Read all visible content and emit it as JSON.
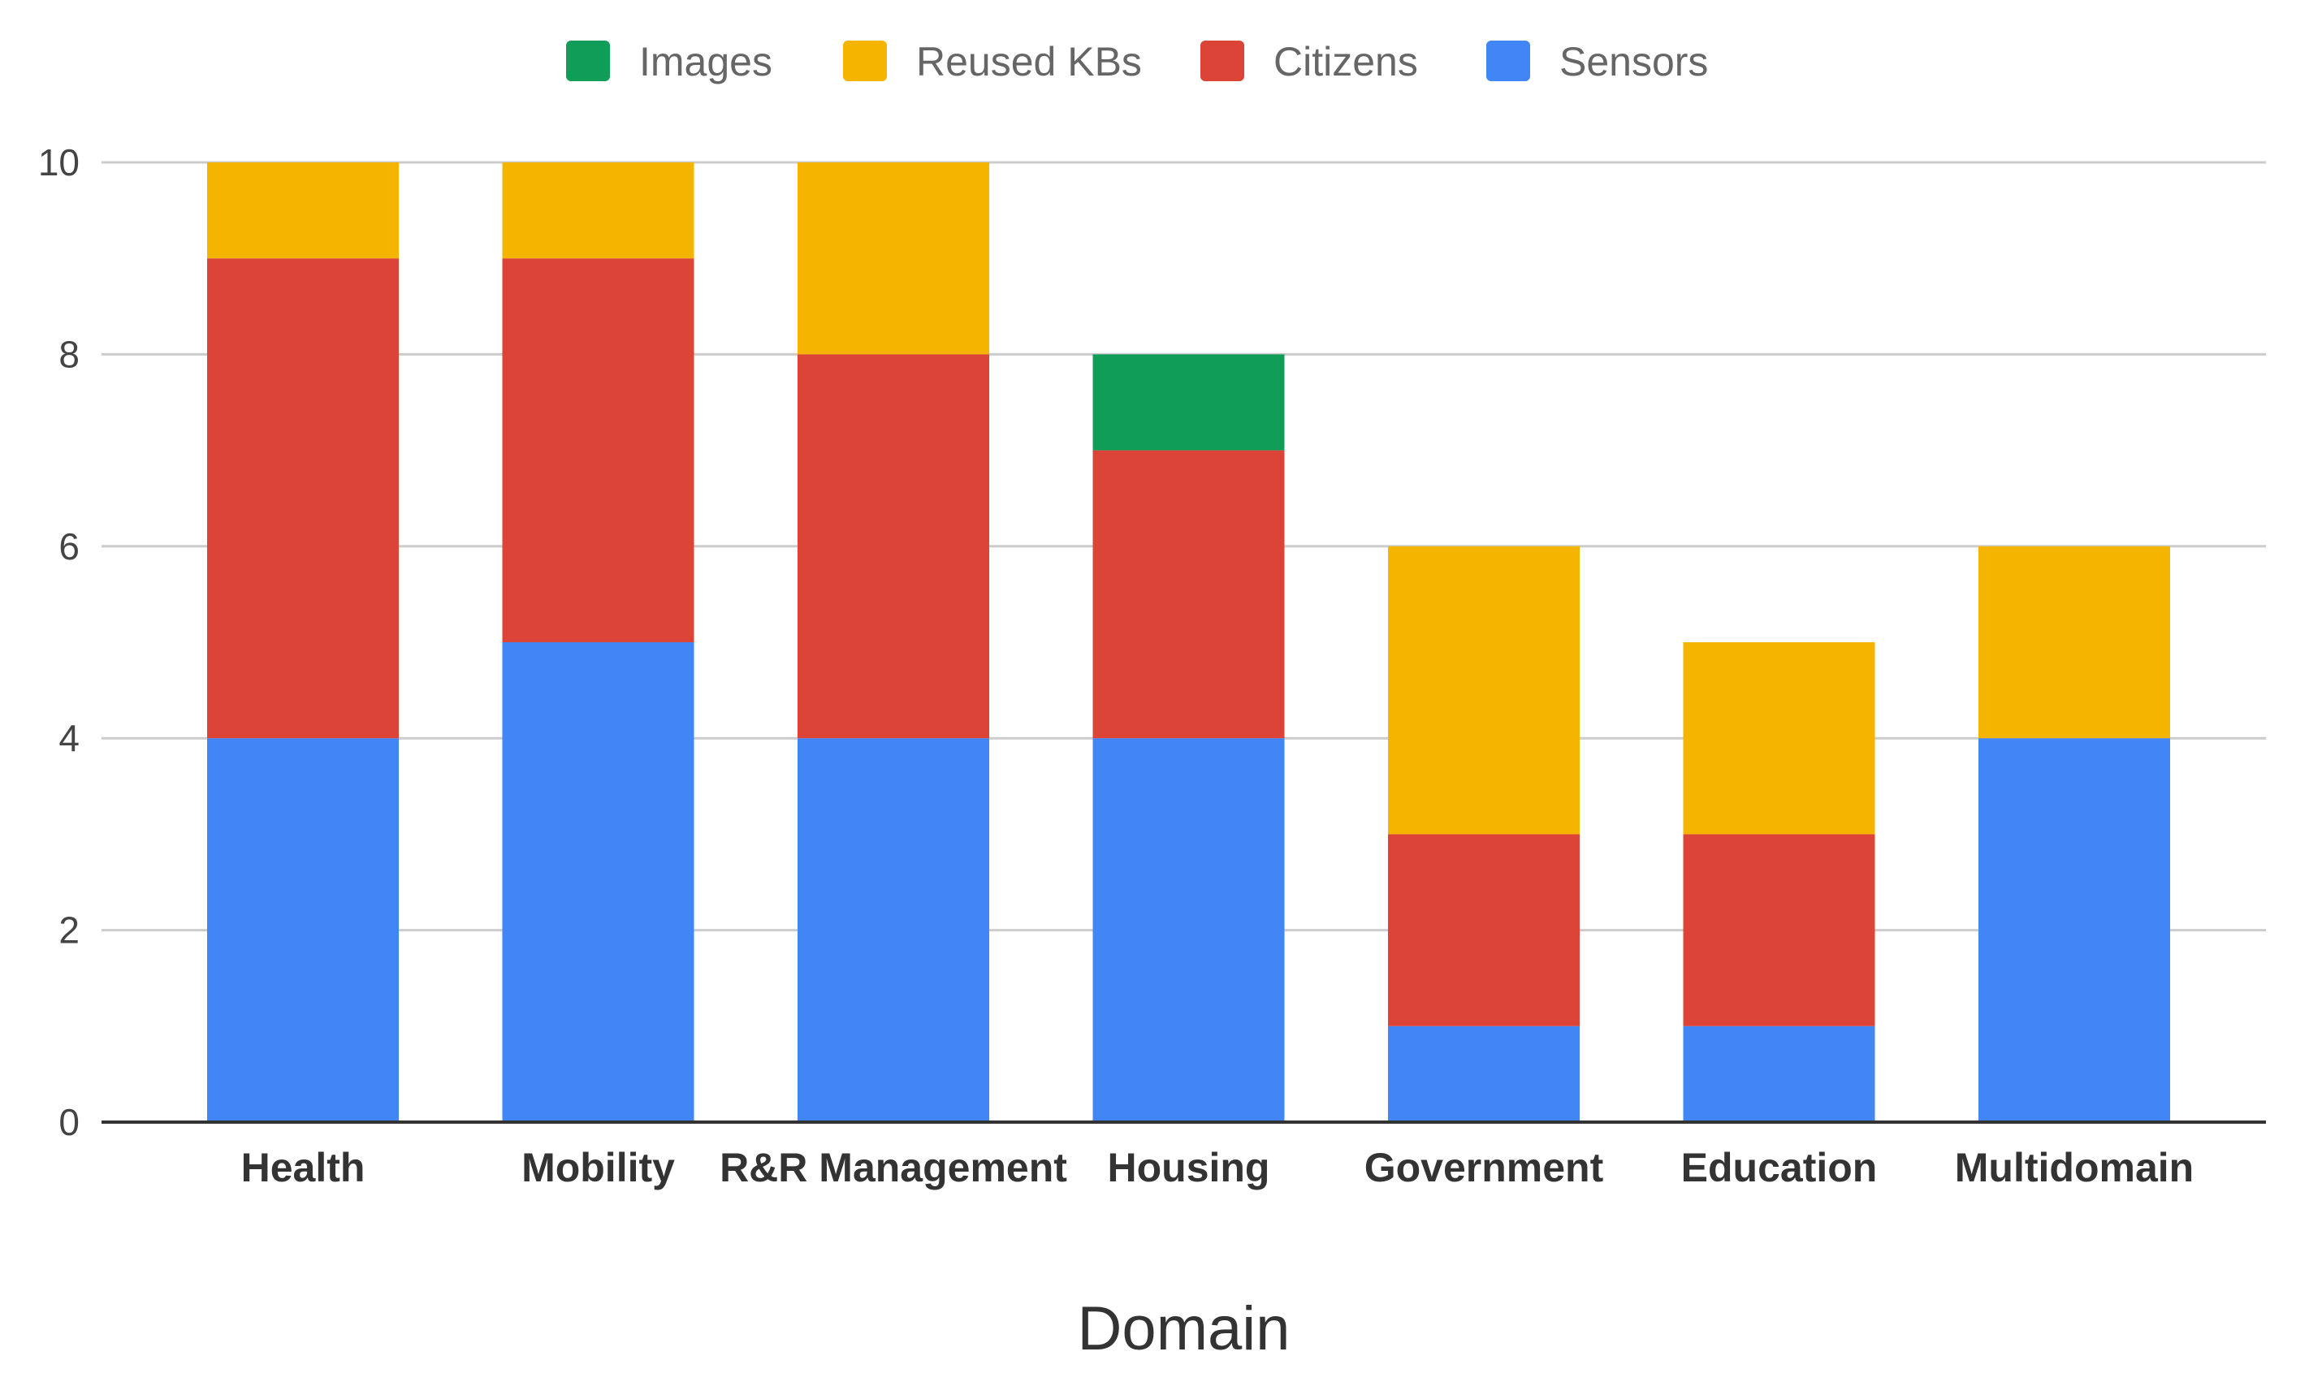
{
  "chart_data": {
    "type": "bar",
    "stacked": true,
    "categories": [
      "Health",
      "Mobility",
      "R&R Management",
      "Housing",
      "Government",
      "Education",
      "Multidomain"
    ],
    "series": [
      {
        "name": "Sensors",
        "color": "#4285F4",
        "values": [
          4,
          5,
          4,
          4,
          1,
          1,
          4
        ]
      },
      {
        "name": "Citizens",
        "color": "#DB4437",
        "values": [
          5,
          4,
          4,
          3,
          2,
          2,
          0
        ]
      },
      {
        "name": "Reused KBs",
        "color": "#F4B400",
        "values": [
          1,
          1,
          2,
          0,
          3,
          2,
          2
        ]
      },
      {
        "name": "Images",
        "color": "#0F9D58",
        "values": [
          0,
          0,
          0,
          1,
          0,
          0,
          0
        ]
      }
    ],
    "legend_order": [
      "Images",
      "Reused KBs",
      "Citizens",
      "Sensors"
    ],
    "legend_position": "top",
    "xlabel": "Domain",
    "ylabel": "",
    "ylim": [
      0,
      10
    ],
    "yticks": [
      0,
      2,
      4,
      6,
      8,
      10
    ],
    "grid": true
  }
}
